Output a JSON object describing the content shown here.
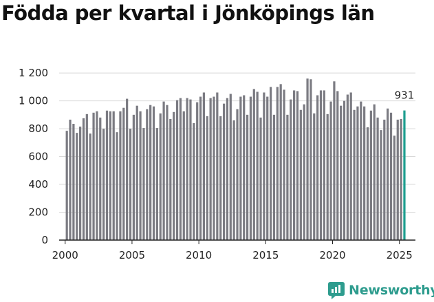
{
  "colors": {
    "bar": "#7b7b82",
    "highlight": "#1e9e8f",
    "grid": "#d8d8d8",
    "axis": "#222222",
    "brand": "#2e9c8e"
  },
  "brand": {
    "name": "Newsworthy",
    "icon": "bar-chart-speech-bubble-icon"
  },
  "chart_data": {
    "type": "bar",
    "title": "Födda per kvartal i Jönköpings län",
    "xlabel": "",
    "ylabel": "",
    "start": "2000 Q1",
    "xlim": [
      1999.55,
      2026.2
    ],
    "ylim": [
      0,
      1250
    ],
    "yticks": [
      0,
      200,
      400,
      600,
      800,
      1000,
      1200
    ],
    "ytick_labels": [
      "0",
      "200",
      "400",
      "600",
      "800",
      "1 000",
      "1 200"
    ],
    "xticks": [
      2000,
      2005,
      2010,
      2015,
      2020,
      2025
    ],
    "xtick_labels": [
      "2000",
      "2005",
      "2010",
      "2015",
      "2020",
      "2025"
    ],
    "grid": true,
    "annotation": "931",
    "values": [
      785,
      865,
      835,
      770,
      815,
      875,
      905,
      765,
      915,
      925,
      880,
      800,
      930,
      925,
      925,
      775,
      925,
      950,
      1015,
      800,
      900,
      965,
      925,
      805,
      940,
      970,
      960,
      805,
      910,
      995,
      970,
      870,
      920,
      1005,
      1020,
      925,
      1020,
      1010,
      840,
      990,
      1030,
      1060,
      890,
      1020,
      1030,
      1060,
      890,
      980,
      1020,
      1050,
      860,
      940,
      1030,
      1040,
      900,
      1030,
      1085,
      1065,
      880,
      1060,
      1030,
      1100,
      900,
      1100,
      1120,
      1080,
      900,
      1010,
      1075,
      1070,
      935,
      975,
      1160,
      1155,
      910,
      1040,
      1075,
      1075,
      905,
      995,
      1140,
      1070,
      965,
      1000,
      1045,
      1060,
      935,
      960,
      995,
      960,
      810,
      930,
      975,
      880,
      790,
      865,
      945,
      915,
      750,
      865,
      870,
      931
    ]
  }
}
